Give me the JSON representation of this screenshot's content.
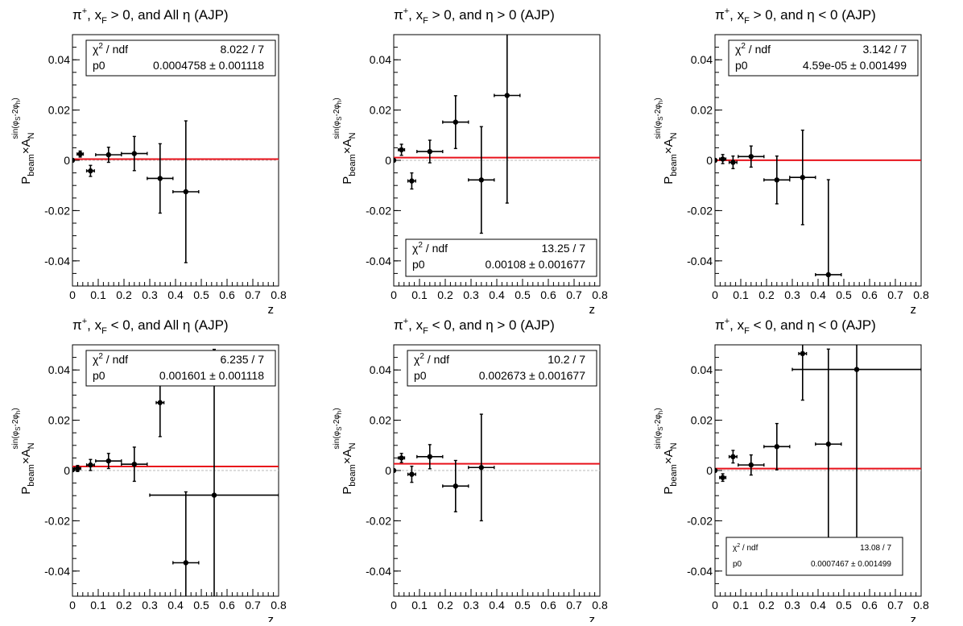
{
  "chart_data": [
    {
      "type": "scatter",
      "title": "π⁺, x_F > 0, and All η (AJP)",
      "xlabel": "z",
      "ylabel": "P_beam×A_N^sin(φ_S-2φ_h)",
      "xlim": [
        0,
        0.8
      ],
      "ylim": [
        -0.05,
        0.05
      ],
      "fit": {
        "p0": 0.0004758,
        "p0_err": 0.001118,
        "chi2_label": "χ² / ndf",
        "chi2_ndf": "8.022 / 7",
        "p0_label": "p0",
        "p0_text": "0.0004758 ± 0.001118",
        "box": "top"
      },
      "points": [
        {
          "x": 0.0,
          "xerr": 0.0,
          "y": 0.0,
          "yerr": 0.0006
        },
        {
          "x": 0.03,
          "xerr": 0.012,
          "y": 0.0025,
          "yerr": 0.0012
        },
        {
          "x": 0.07,
          "xerr": 0.015,
          "y": -0.0042,
          "yerr": 0.0022
        },
        {
          "x": 0.14,
          "xerr": 0.05,
          "y": 0.0022,
          "yerr": 0.003
        },
        {
          "x": 0.24,
          "xerr": 0.05,
          "y": 0.0027,
          "yerr": 0.0068
        },
        {
          "x": 0.34,
          "xerr": 0.05,
          "y": -0.0072,
          "yerr": 0.0138
        },
        {
          "x": 0.44,
          "xerr": 0.05,
          "y": -0.0125,
          "yerr": 0.0282
        }
      ]
    },
    {
      "type": "scatter",
      "title": "π⁺, x_F > 0, and η > 0 (AJP)",
      "xlabel": "z",
      "ylabel": "P_beam×A_N^sin(φ_S-2φ_h)",
      "xlim": [
        0,
        0.8
      ],
      "ylim": [
        -0.05,
        0.05
      ],
      "fit": {
        "p0": 0.00108,
        "p0_err": 0.001677,
        "chi2_label": "χ² / ndf",
        "chi2_ndf": "13.25 / 7",
        "p0_label": "p0",
        "p0_text": "0.00108 ± 0.001677",
        "box": "bottom"
      },
      "points": [
        {
          "x": 0.0,
          "xerr": 0.0,
          "y": 0.0,
          "yerr": 0.0006
        },
        {
          "x": 0.03,
          "xerr": 0.012,
          "y": 0.0042,
          "yerr": 0.0022
        },
        {
          "x": 0.07,
          "xerr": 0.015,
          "y": -0.0082,
          "yerr": 0.0032
        },
        {
          "x": 0.14,
          "xerr": 0.05,
          "y": 0.0035,
          "yerr": 0.0045
        },
        {
          "x": 0.24,
          "xerr": 0.05,
          "y": 0.0152,
          "yerr": 0.0105
        },
        {
          "x": 0.34,
          "xerr": 0.05,
          "y": -0.0078,
          "yerr": 0.0212
        },
        {
          "x": 0.44,
          "xerr": 0.05,
          "y": 0.0258,
          "yerr": 0.0428
        }
      ]
    },
    {
      "type": "scatter",
      "title": "π⁺, x_F > 0, and η < 0 (AJP)",
      "xlabel": "z",
      "ylabel": "P_beam×A_N^sin(φ_S-2φ_h)",
      "xlim": [
        0,
        0.8
      ],
      "ylim": [
        -0.05,
        0.05
      ],
      "fit": {
        "p0": 4.59e-05,
        "p0_err": 0.001499,
        "chi2_label": "χ² / ndf",
        "chi2_ndf": "3.142 / 7",
        "p0_label": "p0",
        "p0_text": "4.59e-05 ± 0.001499",
        "box": "top"
      },
      "points": [
        {
          "x": 0.0,
          "xerr": 0.0,
          "y": 0.0,
          "yerr": 0.0006
        },
        {
          "x": 0.03,
          "xerr": 0.012,
          "y": 0.0005,
          "yerr": 0.0018
        },
        {
          "x": 0.07,
          "xerr": 0.015,
          "y": -0.0008,
          "yerr": 0.0025
        },
        {
          "x": 0.14,
          "xerr": 0.05,
          "y": 0.0015,
          "yerr": 0.0042
        },
        {
          "x": 0.24,
          "xerr": 0.05,
          "y": -0.0078,
          "yerr": 0.0095
        },
        {
          "x": 0.34,
          "xerr": 0.05,
          "y": -0.0068,
          "yerr": 0.0188
        },
        {
          "x": 0.44,
          "xerr": 0.05,
          "y": -0.0455,
          "yerr": 0.0378
        }
      ]
    },
    {
      "type": "scatter",
      "title": "π⁺, x_F < 0, and All η (AJP)",
      "xlabel": "z",
      "ylabel": "P_beam×A_N^sin(φ_S-2φ_h)",
      "xlim": [
        0,
        0.8
      ],
      "ylim": [
        -0.05,
        0.05
      ],
      "fit": {
        "p0": 0.001601,
        "p0_err": 0.001118,
        "chi2_label": "χ² / ndf",
        "chi2_ndf": "6.235 / 7",
        "p0_label": "p0",
        "p0_text": "0.001601 ± 0.001118",
        "box": "top"
      },
      "points": [
        {
          "x": 0.0,
          "xerr": 0.0,
          "y": 0.0003,
          "yerr": 0.0006
        },
        {
          "x": 0.02,
          "xerr": 0.012,
          "y": 0.0008,
          "yerr": 0.0012
        },
        {
          "x": 0.07,
          "xerr": 0.015,
          "y": 0.0022,
          "yerr": 0.0022
        },
        {
          "x": 0.14,
          "xerr": 0.05,
          "y": 0.0038,
          "yerr": 0.003
        },
        {
          "x": 0.24,
          "xerr": 0.05,
          "y": 0.0025,
          "yerr": 0.0068
        },
        {
          "x": 0.34,
          "xerr": 0.015,
          "y": 0.027,
          "yerr": 0.0135
        },
        {
          "x": 0.44,
          "xerr": 0.05,
          "y": -0.0367,
          "yerr": 0.0282
        },
        {
          "x": 0.55,
          "xerr": 0.25,
          "y": -0.0098,
          "yerr": 0.058
        }
      ]
    },
    {
      "type": "scatter",
      "title": "π⁺, x_F < 0, and η > 0 (AJP)",
      "xlabel": "z",
      "ylabel": "P_beam×A_N^sin(φ_S-2φ_h)",
      "xlim": [
        0,
        0.8
      ],
      "ylim": [
        -0.05,
        0.05
      ],
      "fit": {
        "p0": 0.002673,
        "p0_err": 0.001677,
        "chi2_label": "χ² / ndf",
        "chi2_ndf": "10.2 / 7",
        "p0_label": "p0",
        "p0_text": "0.002673 ± 0.001677",
        "box": "top"
      },
      "points": [
        {
          "x": 0.0,
          "xerr": 0.0,
          "y": 0.0,
          "yerr": 0.0006
        },
        {
          "x": 0.03,
          "xerr": 0.012,
          "y": 0.005,
          "yerr": 0.0018
        },
        {
          "x": 0.07,
          "xerr": 0.015,
          "y": -0.0015,
          "yerr": 0.0032
        },
        {
          "x": 0.14,
          "xerr": 0.05,
          "y": 0.0055,
          "yerr": 0.0048
        },
        {
          "x": 0.24,
          "xerr": 0.05,
          "y": -0.0062,
          "yerr": 0.0102
        },
        {
          "x": 0.34,
          "xerr": 0.05,
          "y": 0.0012,
          "yerr": 0.0212
        }
      ]
    },
    {
      "type": "scatter",
      "title": "π⁺, x_F < 0, and η < 0 (AJP)",
      "xlabel": "z",
      "ylabel": "P_beam×A_N^sin(φ_S-2φ_h)",
      "xlim": [
        0,
        0.8
      ],
      "ylim": [
        -0.05,
        0.05
      ],
      "fit": {
        "p0": 0.0007467,
        "p0_err": 0.001499,
        "chi2_label": "χ² / ndf",
        "chi2_ndf": "13.08 / 7",
        "p0_label": "p0",
        "p0_text": "0.0007467 ± 0.001499",
        "box": "bottom-small"
      },
      "points": [
        {
          "x": 0.0,
          "xerr": 0.0,
          "y": 0.0,
          "yerr": 0.0006
        },
        {
          "x": 0.03,
          "xerr": 0.012,
          "y": -0.0028,
          "yerr": 0.0015
        },
        {
          "x": 0.07,
          "xerr": 0.015,
          "y": 0.0055,
          "yerr": 0.0025
        },
        {
          "x": 0.14,
          "xerr": 0.05,
          "y": 0.0022,
          "yerr": 0.004
        },
        {
          "x": 0.24,
          "xerr": 0.05,
          "y": 0.0095,
          "yerr": 0.0092
        },
        {
          "x": 0.34,
          "xerr": 0.015,
          "y": 0.0465,
          "yerr": 0.0185
        },
        {
          "x": 0.44,
          "xerr": 0.05,
          "y": 0.0105,
          "yerr": 0.0378
        },
        {
          "x": 0.55,
          "xerr": 0.25,
          "y": 0.0402,
          "yerr": 0.0758
        }
      ]
    }
  ],
  "axis": {
    "xticks": [
      0,
      0.1,
      0.2,
      0.3,
      0.4,
      0.5,
      0.6,
      0.7,
      0.8
    ],
    "xtick_labels": [
      "0",
      "0.1",
      "0.2",
      "0.3",
      "0.4",
      "0.5",
      "0.6",
      "0.7",
      "0.8"
    ],
    "yticks": [
      -0.04,
      -0.02,
      0,
      0.02,
      0.04
    ],
    "ytick_labels": [
      "-0.04",
      "-0.02",
      "0",
      "0.02",
      "0.04"
    ]
  },
  "colors": {
    "fit_line": "#e8121b",
    "zero_line": "#bbbbbb",
    "marker": "#000000",
    "frame": "#000000"
  }
}
